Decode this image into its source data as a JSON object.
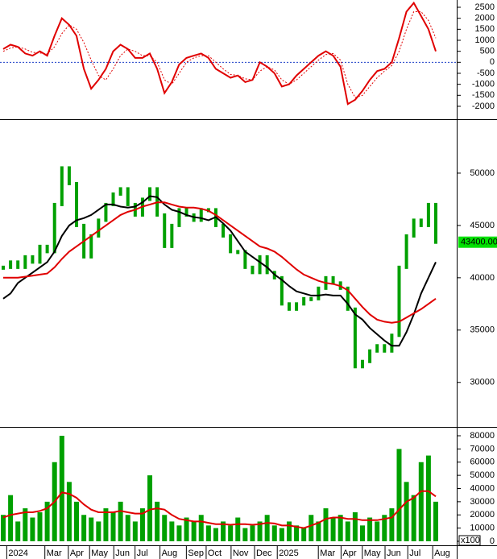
{
  "chart_data": [
    {
      "type": "line",
      "ylim": [
        -2550,
        2830
      ],
      "yticks": [
        2500,
        2000,
        1500,
        1000,
        500,
        0,
        -500,
        -1000,
        -1500,
        -2000
      ],
      "zero_line": true,
      "xlim": [
        0,
        59
      ],
      "series": [
        {
          "color": "#e00000",
          "style": "solid",
          "values": [
            600,
            800,
            700,
            400,
            300,
            500,
            300,
            1200,
            2000,
            1700,
            1200,
            -300,
            -1200,
            -800,
            -300,
            500,
            800,
            600,
            200,
            200,
            400,
            -300,
            -1400,
            -900,
            -100,
            200,
            300,
            400,
            200,
            -300,
            -500,
            -700,
            -600,
            -900,
            -800,
            0,
            -200,
            -500,
            -1100,
            -1000,
            -600,
            -300,
            0,
            300,
            500,
            300,
            -200,
            -1900,
            -1700,
            -1300,
            -800,
            -400,
            -300,
            0,
            1100,
            2300,
            2700,
            2100,
            1500,
            500
          ]
        },
        {
          "color": "#e00000",
          "style": "dotted",
          "values": [
            500,
            650,
            700,
            600,
            450,
            420,
            380,
            700,
            1300,
            1700,
            1500,
            900,
            100,
            -600,
            -800,
            -300,
            300,
            600,
            500,
            300,
            300,
            0,
            -800,
            -1000,
            -500,
            0,
            200,
            300,
            300,
            0,
            -300,
            -550,
            -600,
            -750,
            -800,
            -400,
            -200,
            -350,
            -800,
            -1000,
            -800,
            -500,
            -200,
            100,
            350,
            400,
            100,
            -1000,
            -1600,
            -1500,
            -1100,
            -700,
            -400,
            -150,
            500,
            1500,
            2300,
            2300,
            1900,
            1100
          ]
        }
      ]
    },
    {
      "type": "price",
      "ylim": [
        25900,
        55000
      ],
      "yticks": [
        50000,
        45000,
        40000,
        35000,
        30000
      ],
      "xlim": [
        0,
        59
      ],
      "last_label": "43400.00",
      "series": [
        {
          "color": "#00a000",
          "style": "candle",
          "values": [
            41000,
            41500,
            41000,
            42000,
            41500,
            43000,
            42500,
            47000,
            50500,
            49000,
            45000,
            42000,
            44000,
            45500,
            47000,
            48000,
            48500,
            47000,
            46000,
            47500,
            48500,
            46000,
            43000,
            45000,
            46500,
            46000,
            45500,
            46500,
            46500,
            45000,
            44000,
            42500,
            42500,
            41000,
            40500,
            42000,
            40500,
            40000,
            37500,
            37000,
            37500,
            38000,
            38000,
            39000,
            40000,
            39500,
            39000,
            37000,
            31500,
            32000,
            33000,
            33500,
            33000,
            34500,
            41000,
            44000,
            45500,
            45000,
            47000,
            43400
          ]
        },
        {
          "color": "#000000",
          "style": "line",
          "values": [
            38000,
            38500,
            39500,
            40000,
            40500,
            41000,
            41500,
            42500,
            44000,
            45000,
            45500,
            45700,
            46000,
            46500,
            47000,
            47000,
            46800,
            46700,
            46800,
            47200,
            47800,
            47700,
            47000,
            46500,
            46300,
            46000,
            45800,
            45700,
            45500,
            45800,
            45200,
            44500,
            43500,
            42500,
            42000,
            41500,
            41000,
            40300,
            39800,
            39200,
            38700,
            38500,
            38300,
            38300,
            38400,
            38300,
            38300,
            37500,
            36500,
            36000,
            35200,
            34600,
            34000,
            33500,
            33500,
            34800,
            36500,
            38500,
            40000,
            41500
          ]
        },
        {
          "color": "#e00000",
          "style": "line",
          "values": [
            40000,
            40000,
            40000,
            40100,
            40200,
            40300,
            40400,
            41000,
            41800,
            42500,
            43000,
            43500,
            44000,
            44500,
            45000,
            45500,
            46000,
            46300,
            46500,
            46800,
            47000,
            47200,
            47200,
            47000,
            46800,
            46700,
            46700,
            46600,
            46400,
            46000,
            45500,
            45000,
            44500,
            44000,
            43500,
            43000,
            42800,
            42500,
            42000,
            41400,
            40800,
            40300,
            40000,
            39700,
            39500,
            39400,
            39200,
            38800,
            38000,
            37200,
            36500,
            36000,
            35800,
            35700,
            35800,
            36200,
            36600,
            37000,
            37500,
            38000
          ]
        }
      ]
    },
    {
      "type": "bar",
      "ylim": [
        0,
        85500
      ],
      "yticks": [
        80000,
        70000,
        60000,
        50000,
        40000,
        30000,
        20000,
        10000,
        0
      ],
      "unit_label": "x100",
      "xlim": [
        0,
        59
      ],
      "series": [
        {
          "color": "#00a000",
          "style": "bar",
          "values": [
            20000,
            35000,
            15000,
            25000,
            18000,
            22000,
            30000,
            60000,
            80000,
            45000,
            30000,
            20000,
            18000,
            15000,
            25000,
            22000,
            30000,
            20000,
            15000,
            25000,
            50000,
            30000,
            20000,
            15000,
            12000,
            18000,
            15000,
            20000,
            12000,
            10000,
            15000,
            12000,
            18000,
            10000,
            12000,
            15000,
            20000,
            12000,
            10000,
            15000,
            12000,
            10000,
            20000,
            15000,
            25000,
            18000,
            20000,
            15000,
            22000,
            12000,
            18000,
            15000,
            20000,
            25000,
            70000,
            45000,
            35000,
            60000,
            65000,
            30000
          ]
        },
        {
          "color": "#e00000",
          "style": "line",
          "values": [
            18000,
            20000,
            21000,
            22000,
            22000,
            23000,
            25000,
            30000,
            37000,
            36000,
            33000,
            28000,
            24000,
            22000,
            22000,
            22000,
            23000,
            22000,
            21000,
            21000,
            24000,
            25000,
            24000,
            20000,
            17000,
            16000,
            15000,
            15000,
            14000,
            13000,
            13000,
            12500,
            13000,
            13000,
            12500,
            13000,
            14000,
            13500,
            12000,
            12000,
            11000,
            10000,
            12000,
            14000,
            17000,
            18000,
            18000,
            17000,
            17000,
            16000,
            16000,
            16000,
            17000,
            18000,
            24000,
            30000,
            33000,
            38000,
            38000,
            34000
          ]
        }
      ],
      "xticks": [
        {
          "value": 0.7,
          "label": "2024"
        },
        {
          "value": 5.9,
          "label": "Mar"
        },
        {
          "value": 9.1,
          "label": "Apr"
        },
        {
          "value": 12,
          "label": "May"
        },
        {
          "value": 15.3,
          "label": "Jun"
        },
        {
          "value": 18.2,
          "label": "Jul"
        },
        {
          "value": 21.6,
          "label": "Aug"
        },
        {
          "value": 25.2,
          "label": "Sep"
        },
        {
          "value": 27.9,
          "label": "Oct"
        },
        {
          "value": 31.3,
          "label": "Nov"
        },
        {
          "value": 34.5,
          "label": "Dec"
        },
        {
          "value": 37.6,
          "label": "2025"
        },
        {
          "value": 43.2,
          "label": "Mar"
        },
        {
          "value": 46.3,
          "label": "Apr"
        },
        {
          "value": 49.2,
          "label": "May"
        },
        {
          "value": 52.3,
          "label": "Jun"
        },
        {
          "value": 55.4,
          "label": "Jul"
        },
        {
          "value": 58.8,
          "label": "Aug"
        }
      ]
    }
  ]
}
